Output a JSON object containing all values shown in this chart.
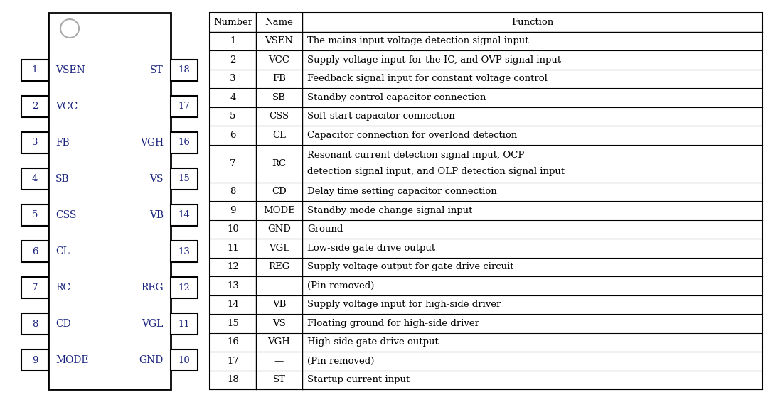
{
  "bg_color": "#ffffff",
  "ic_line_color": "#000000",
  "ic_text_color": "#1a237e",
  "circle_color": "#aaaaaa",
  "table_line_color": "#000000",
  "table_text_color": "#000000",
  "left_pins": [
    {
      "num": "1",
      "name": "VSEN"
    },
    {
      "num": "2",
      "name": "VCC"
    },
    {
      "num": "3",
      "name": "FB"
    },
    {
      "num": "4",
      "name": "SB"
    },
    {
      "num": "5",
      "name": "CSS"
    },
    {
      "num": "6",
      "name": "CL"
    },
    {
      "num": "7",
      "name": "RC"
    },
    {
      "num": "8",
      "name": "CD"
    },
    {
      "num": "9",
      "name": "MODE"
    }
  ],
  "right_pins": [
    {
      "num": "18",
      "name": "ST"
    },
    {
      "num": "17",
      "name": ""
    },
    {
      "num": "16",
      "name": "VGH"
    },
    {
      "num": "15",
      "name": "VS"
    },
    {
      "num": "14",
      "name": "VB"
    },
    {
      "num": "13",
      "name": ""
    },
    {
      "num": "12",
      "name": "REG"
    },
    {
      "num": "11",
      "name": "VGL"
    },
    {
      "num": "10",
      "name": "GND"
    }
  ],
  "table_data": [
    {
      "num": "1",
      "name": "VSEN",
      "func": "The mains input voltage detection signal input",
      "double": false
    },
    {
      "num": "2",
      "name": "VCC",
      "func": "Supply voltage input for the IC, and OVP signal input",
      "double": false
    },
    {
      "num": "3",
      "name": "FB",
      "func": "Feedback signal input for constant voltage control",
      "double": false
    },
    {
      "num": "4",
      "name": "SB",
      "func": "Standby control capacitor connection",
      "double": false
    },
    {
      "num": "5",
      "name": "CSS",
      "func": "Soft-start capacitor connection",
      "double": false
    },
    {
      "num": "6",
      "name": "CL",
      "func": "Capacitor connection for overload detection",
      "double": false
    },
    {
      "num": "7",
      "name": "RC",
      "func1": "Resonant current detection signal input, OCP",
      "func2": "detection signal input, and OLP detection signal input",
      "double": true
    },
    {
      "num": "8",
      "name": "CD",
      "func": "Delay time setting capacitor connection",
      "double": false
    },
    {
      "num": "9",
      "name": "MODE",
      "func": "Standby mode change signal input",
      "double": false
    },
    {
      "num": "10",
      "name": "GND",
      "func": "Ground",
      "double": false
    },
    {
      "num": "11",
      "name": "VGL",
      "func": "Low-side gate drive output",
      "double": false
    },
    {
      "num": "12",
      "name": "REG",
      "func": "Supply voltage output for gate drive circuit",
      "double": false
    },
    {
      "num": "13",
      "name": "—",
      "func": "(Pin removed)",
      "double": false
    },
    {
      "num": "14",
      "name": "VB",
      "func": "Supply voltage input for high-side driver",
      "double": false
    },
    {
      "num": "15",
      "name": "VS",
      "func": "Floating ground for high-side driver",
      "double": false
    },
    {
      "num": "16",
      "name": "VGH",
      "func": "High-side gate drive output",
      "double": false
    },
    {
      "num": "17",
      "name": "—",
      "func": "(Pin removed)",
      "double": false
    },
    {
      "num": "18",
      "name": "ST",
      "func": "Startup current input",
      "double": false
    }
  ],
  "figsize": [
    10.8,
    5.66
  ],
  "dpi": 100
}
